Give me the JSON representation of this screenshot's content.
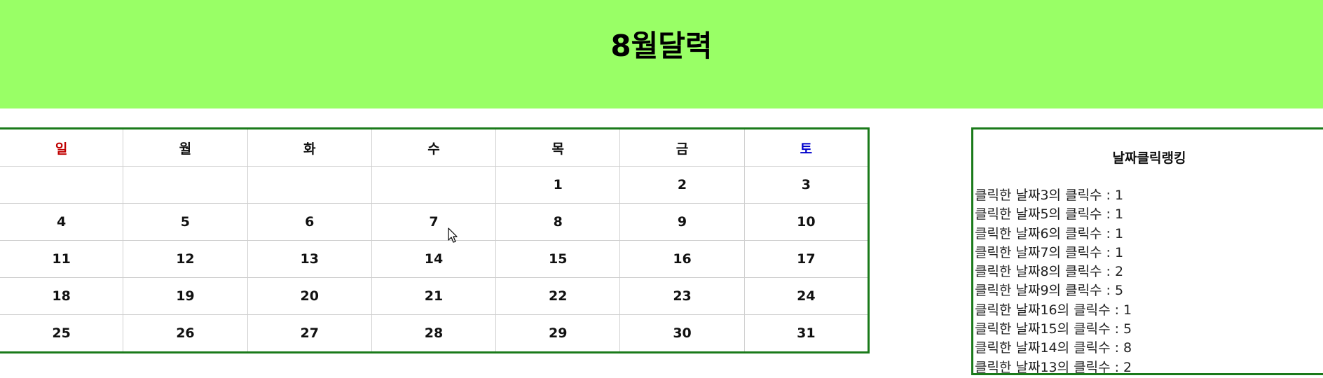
{
  "header": {
    "title": "8월달력",
    "background": "#99ff66"
  },
  "calendar": {
    "weekdays": [
      {
        "label": "일",
        "color": "#c00000"
      },
      {
        "label": "월"
      },
      {
        "label": "화"
      },
      {
        "label": "수"
      },
      {
        "label": "목"
      },
      {
        "label": "금"
      },
      {
        "label": "토",
        "color": "#0000cc"
      }
    ],
    "weeks": [
      [
        "",
        "",
        "",
        "",
        "1",
        "2",
        "3"
      ],
      [
        "4",
        "5",
        "6",
        "7",
        "8",
        "9",
        "10"
      ],
      [
        "11",
        "12",
        "13",
        "14",
        "15",
        "16",
        "17"
      ],
      [
        "18",
        "19",
        "20",
        "21",
        "22",
        "23",
        "24"
      ],
      [
        "25",
        "26",
        "27",
        "28",
        "29",
        "30",
        "31"
      ]
    ],
    "border_color": "#1a7a1a"
  },
  "ranking": {
    "title": "날짜클릭랭킹",
    "items": [
      "클릭한 날짜3의 클릭수 : 1",
      "클릭한 날짜5의 클릭수 : 1",
      "클릭한 날짜6의 클릭수 : 1",
      "클릭한 날짜7의 클릭수 : 1",
      "클릭한 날짜8의 클릭수 : 2",
      "클릭한 날짜9의 클릭수 : 5",
      "클릭한 날짜16의 클릭수 : 1",
      "클릭한 날짜15의 클릭수 : 5",
      "클릭한 날짜14의 클릭수 : 8",
      "클릭한 날짜13의 클릭수 : 2"
    ]
  },
  "cursor": {
    "icon": "mouse-pointer-icon"
  }
}
